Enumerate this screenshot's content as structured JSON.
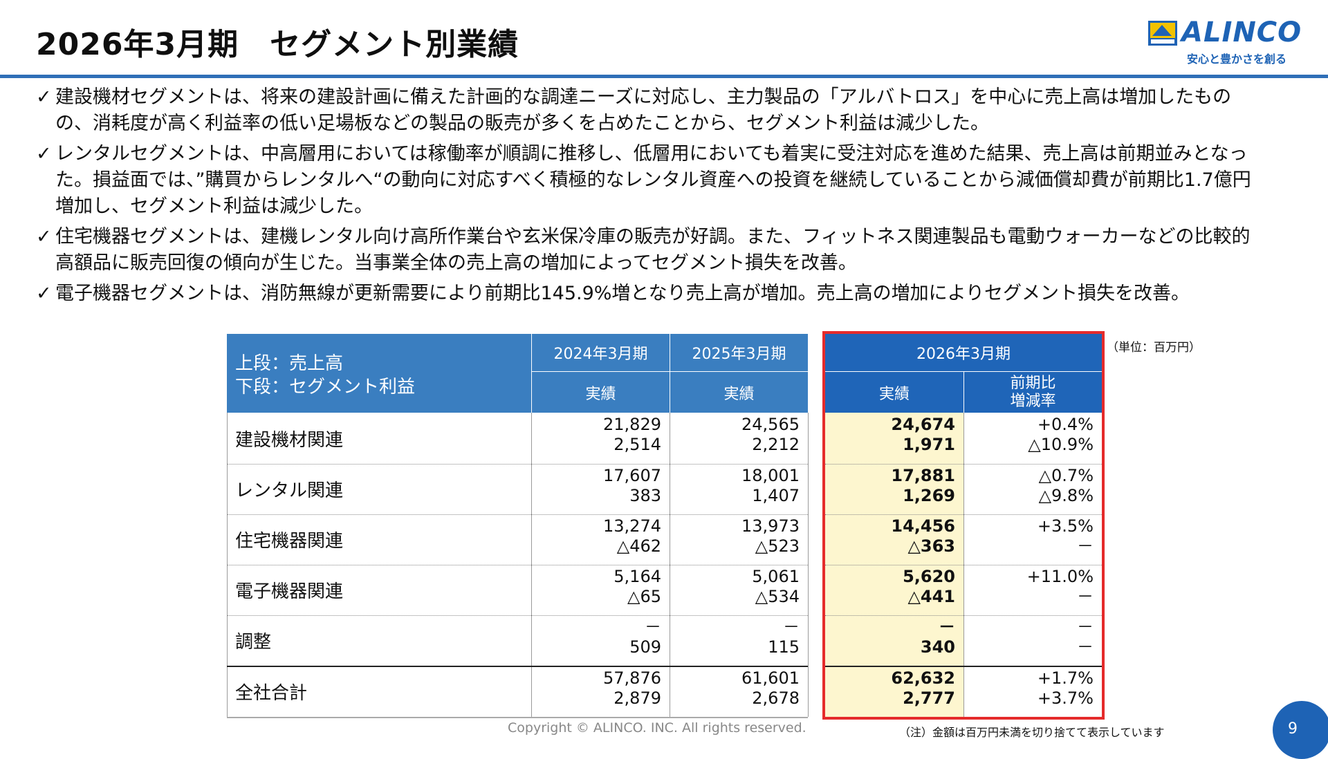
{
  "header": {
    "title": "2026年3月期　セグメント別業績",
    "logo_name": "ALINCO",
    "logo_tagline": "安心と豊かさを創る"
  },
  "bullets": [
    "建設機材セグメントは、将来の建設計画に備えた計画的な調達ニーズに対応し、主力製品の「アルバトロス」を中心に売上高は増加したものの、消耗度が高く利益率の低い足場板などの製品の販売が多くを占めたことから、セグメント利益は減少した。",
    "レンタルセグメントは、中高層用においては稼働率が順調に推移し、低層用においても着実に受注対応を進めた結果、売上高は前期並みとなった。損益面では、”購買からレンタルへ“の動向に対応すべく積極的なレンタル資産への投資を継続していることから減価償却費が前期比1.7億円増加し、セグメント利益は減少した。",
    "住宅機器セグメントは、建機レンタル向け高所作業台や玄米保冷庫の販売が好調。また、フィットネス関連製品も電動ウォーカーなどの比較的高額品に販売回復の傾向が生じた。当事業全体の売上高の増加によってセグメント損失を改善。",
    "電子機器セグメントは、消防無線が更新需要により前期比145.9%増となり売上高が増加。売上高の増加によりセグメント損失を改善。"
  ],
  "bullet_mark": "✓",
  "unit_note": "（単位：百万円）",
  "table": {
    "header_label_line1": "上段：売上高",
    "header_label_line2": "下段：セグメント利益",
    "period_2024": "2024年3月期",
    "period_2025": "2025年3月期",
    "period_2026": "2026年3月期",
    "col_actual": "実績",
    "col_change_line1": "前期比",
    "col_change_line2": "増減率",
    "rows": [
      {
        "label": "建設機材関連",
        "fy24": [
          "21,829",
          "2,514"
        ],
        "fy25": [
          "24,565",
          "2,212"
        ],
        "fy26": [
          "24,674",
          "1,971"
        ],
        "chg": [
          "+0.4%",
          "△10.9%"
        ]
      },
      {
        "label": "レンタル関連",
        "fy24": [
          "17,607",
          "383"
        ],
        "fy25": [
          "18,001",
          "1,407"
        ],
        "fy26": [
          "17,881",
          "1,269"
        ],
        "chg": [
          "△0.7%",
          "△9.8%"
        ]
      },
      {
        "label": "住宅機器関連",
        "fy24": [
          "13,274",
          "△462"
        ],
        "fy25": [
          "13,973",
          "△523"
        ],
        "fy26": [
          "14,456",
          "△363"
        ],
        "chg": [
          "+3.5%",
          "－"
        ]
      },
      {
        "label": "電子機器関連",
        "fy24": [
          "5,164",
          "△65"
        ],
        "fy25": [
          "5,061",
          "△534"
        ],
        "fy26": [
          "5,620",
          "△441"
        ],
        "chg": [
          "+11.0%",
          "－"
        ]
      },
      {
        "label": "調整",
        "fy24": [
          "－",
          "509"
        ],
        "fy25": [
          "－",
          "115"
        ],
        "fy26": [
          "－",
          "340"
        ],
        "chg": [
          "－",
          "－"
        ]
      },
      {
        "label": "全社合計",
        "fy24": [
          "57,876",
          "2,879"
        ],
        "fy25": [
          "61,601",
          "2,678"
        ],
        "fy26": [
          "62,632",
          "2,777"
        ],
        "chg": [
          "+1.7%",
          "+3.7%"
        ]
      }
    ]
  },
  "footnote": "（注）金額は百万円未満を切り捨てて表示しています",
  "copyright": "Copyright © ALINCO. INC. All rights reserved.",
  "page_number": "9",
  "colors": {
    "accent_blue": "#1e63b5",
    "header_blue": "#3a7ec0",
    "highlight_yellow": "#fdf6cf",
    "highlight_border_red": "#e52b2b"
  }
}
